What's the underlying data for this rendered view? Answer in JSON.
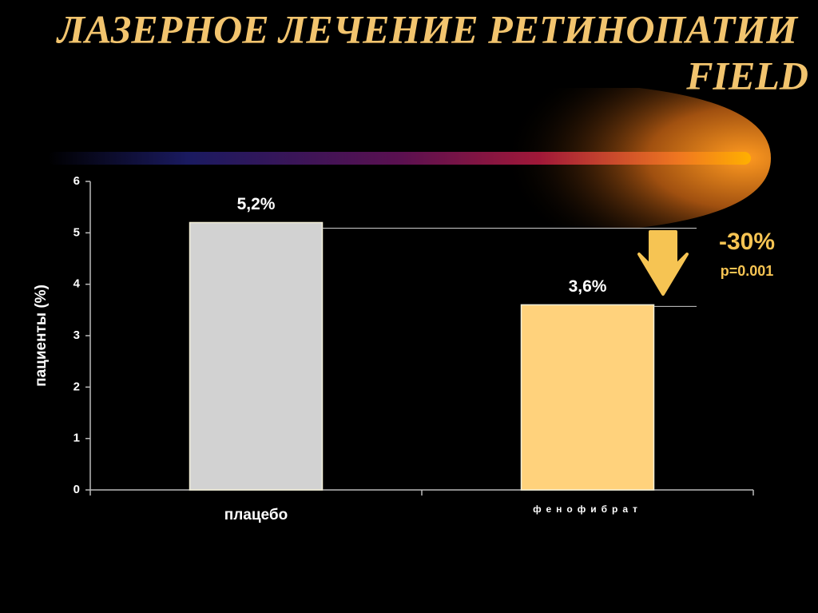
{
  "chart_data": {
    "type": "bar",
    "title": [
      "ЛАЗЕРНОЕ ЛЕЧЕНИЕ РЕТИНОПАТИИ",
      "FIELD"
    ],
    "y_label": "пациенты (%)",
    "categories": [
      "плацебо",
      "фенофибрат"
    ],
    "values": [
      5.2,
      3.6
    ],
    "value_labels": [
      "5,2%",
      "3,6%"
    ],
    "colors": [
      "#d2d2d2",
      "#ffd27c"
    ],
    "ylim": [
      0,
      6
    ],
    "yticks": [
      0,
      1,
      2,
      3,
      4,
      5,
      6
    ],
    "annotations": {
      "change": "-30%",
      "p_value": "p=0.001"
    }
  }
}
